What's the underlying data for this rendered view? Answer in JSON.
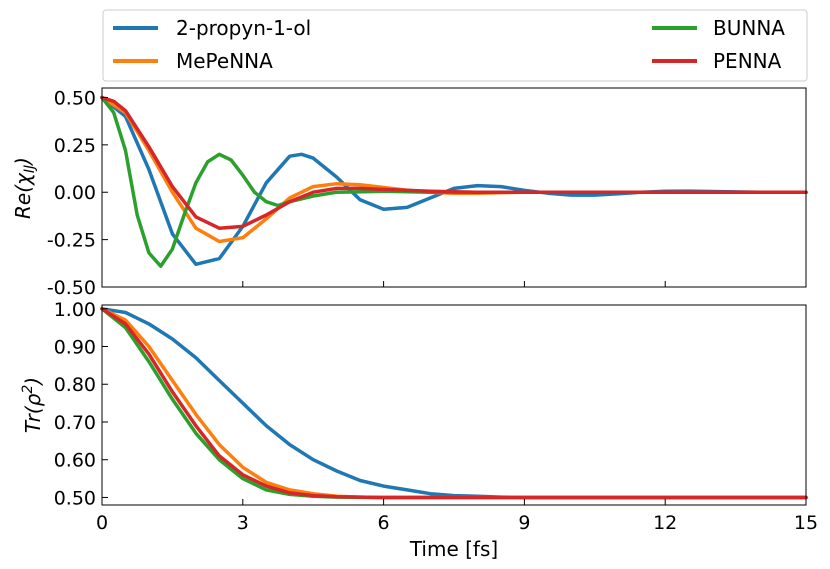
{
  "chart_data": [
    {
      "type": "line",
      "panel": "top",
      "ylabel_parts": {
        "base": "Re(",
        "chi": "χ",
        "sub": "IJ",
        "close": ")"
      },
      "xlim": [
        0,
        15
      ],
      "ylim": [
        -0.5,
        0.55
      ],
      "yticks": [
        0.5,
        0.25,
        0.0,
        -0.25,
        -0.5
      ],
      "ytick_labels": [
        "0.50",
        "0.25",
        "0.00",
        "-0.25",
        "-0.50"
      ],
      "xticks": [
        0,
        3,
        6,
        9,
        12,
        15
      ],
      "series": [
        {
          "name": "2-propyn-1-ol",
          "color": "#1f77b4",
          "x": [
            0,
            0.5,
            1,
            1.5,
            2,
            2.5,
            3,
            3.5,
            4,
            4.25,
            4.5,
            5,
            5.5,
            6,
            6.5,
            7,
            7.5,
            8,
            8.5,
            9,
            9.5,
            10,
            10.5,
            11,
            11.5,
            12,
            12.5,
            13,
            14,
            15
          ],
          "y": [
            0.5,
            0.4,
            0.12,
            -0.22,
            -0.38,
            -0.35,
            -0.18,
            0.05,
            0.19,
            0.2,
            0.18,
            0.08,
            -0.04,
            -0.09,
            -0.08,
            -0.03,
            0.02,
            0.035,
            0.03,
            0.01,
            -0.005,
            -0.015,
            -0.015,
            -0.008,
            0.0,
            0.005,
            0.006,
            0.004,
            0.0,
            0.0
          ]
        },
        {
          "name": "MePeNNA",
          "color": "#ff7f0e",
          "x": [
            0,
            0.5,
            1,
            1.5,
            2,
            2.5,
            3,
            3.5,
            4,
            4.5,
            5,
            5.5,
            6,
            6.5,
            7,
            7.5,
            8,
            9,
            10,
            12,
            15
          ],
          "y": [
            0.5,
            0.42,
            0.22,
            0.0,
            -0.19,
            -0.26,
            -0.24,
            -0.14,
            -0.03,
            0.03,
            0.045,
            0.04,
            0.025,
            0.01,
            0.0,
            -0.005,
            -0.005,
            0.0,
            0.0,
            0.0,
            0.0
          ]
        },
        {
          "name": "BUNNA",
          "color": "#2ca02c",
          "x": [
            0,
            0.25,
            0.5,
            0.75,
            1,
            1.25,
            1.5,
            1.75,
            2,
            2.25,
            2.5,
            2.75,
            3,
            3.25,
            3.5,
            3.75,
            4,
            4.5,
            5,
            6,
            7,
            8,
            10,
            15
          ],
          "y": [
            0.5,
            0.42,
            0.22,
            -0.12,
            -0.32,
            -0.39,
            -0.3,
            -0.12,
            0.05,
            0.16,
            0.2,
            0.17,
            0.09,
            0.0,
            -0.05,
            -0.07,
            -0.05,
            -0.02,
            0.0,
            0.005,
            0.0,
            0.0,
            0.0,
            0.0
          ]
        },
        {
          "name": "PENNA",
          "color": "#d62728",
          "x": [
            0,
            0.25,
            0.5,
            1,
            1.5,
            2,
            2.5,
            3,
            3.5,
            4,
            4.5,
            5,
            5.5,
            6,
            7,
            8,
            10,
            15
          ],
          "y": [
            0.5,
            0.48,
            0.43,
            0.24,
            0.03,
            -0.13,
            -0.19,
            -0.18,
            -0.12,
            -0.05,
            0.0,
            0.02,
            0.02,
            0.015,
            0.005,
            0.0,
            0.0,
            0.0
          ]
        }
      ]
    },
    {
      "type": "line",
      "panel": "bottom",
      "ylabel_parts": {
        "base": "Tr(",
        "rho": "ρ",
        "sup": "2",
        "close": ")"
      },
      "xlabel": "Time [fs]",
      "xlim": [
        0,
        15
      ],
      "ylim": [
        0.48,
        1.01
      ],
      "yticks": [
        1.0,
        0.9,
        0.8,
        0.7,
        0.6,
        0.5
      ],
      "ytick_labels": [
        "1.00",
        "0.90",
        "0.80",
        "0.70",
        "0.60",
        "0.50"
      ],
      "xticks": [
        0,
        3,
        6,
        9,
        12,
        15
      ],
      "xtick_labels": [
        "0",
        "3",
        "6",
        "9",
        "12",
        "15"
      ],
      "series": [
        {
          "name": "2-propyn-1-ol",
          "color": "#1f77b4",
          "x": [
            0,
            0.5,
            1,
            1.5,
            2,
            2.5,
            3,
            3.5,
            4,
            4.5,
            5,
            5.5,
            6,
            6.5,
            7,
            7.5,
            8,
            8.5,
            9,
            10,
            11,
            12,
            13,
            15
          ],
          "y": [
            1.0,
            0.99,
            0.96,
            0.92,
            0.87,
            0.81,
            0.75,
            0.69,
            0.64,
            0.6,
            0.57,
            0.545,
            0.53,
            0.52,
            0.51,
            0.505,
            0.503,
            0.501,
            0.5,
            0.5,
            0.5,
            0.5,
            0.5,
            0.5
          ]
        },
        {
          "name": "MePeNNA",
          "color": "#ff7f0e",
          "x": [
            0,
            0.5,
            1,
            1.5,
            2,
            2.5,
            3,
            3.5,
            4,
            4.5,
            5,
            5.5,
            6,
            7,
            8,
            10,
            15
          ],
          "y": [
            1.0,
            0.97,
            0.9,
            0.81,
            0.72,
            0.64,
            0.58,
            0.54,
            0.52,
            0.51,
            0.503,
            0.501,
            0.5,
            0.5,
            0.5,
            0.5,
            0.5
          ]
        },
        {
          "name": "BUNNA",
          "color": "#2ca02c",
          "x": [
            0,
            0.5,
            1,
            1.5,
            2,
            2.5,
            3,
            3.5,
            4,
            4.5,
            5,
            6,
            7,
            8,
            10,
            15
          ],
          "y": [
            1.0,
            0.95,
            0.86,
            0.76,
            0.67,
            0.6,
            0.55,
            0.52,
            0.508,
            0.503,
            0.501,
            0.5,
            0.5,
            0.5,
            0.5,
            0.5
          ]
        },
        {
          "name": "PENNA",
          "color": "#d62728",
          "x": [
            0,
            0.5,
            1,
            1.5,
            2,
            2.5,
            3,
            3.5,
            4,
            4.5,
            5,
            6,
            7,
            8,
            10,
            15
          ],
          "y": [
            1.0,
            0.96,
            0.88,
            0.78,
            0.69,
            0.61,
            0.56,
            0.53,
            0.512,
            0.505,
            0.502,
            0.5,
            0.5,
            0.5,
            0.5,
            0.5
          ]
        }
      ]
    }
  ],
  "legend": [
    {
      "name": "2-propyn-1-ol",
      "color": "#1f77b4"
    },
    {
      "name": "MePeNNA",
      "color": "#ff7f0e"
    },
    {
      "name": "BUNNA",
      "color": "#2ca02c"
    },
    {
      "name": "PENNA",
      "color": "#d62728"
    }
  ]
}
